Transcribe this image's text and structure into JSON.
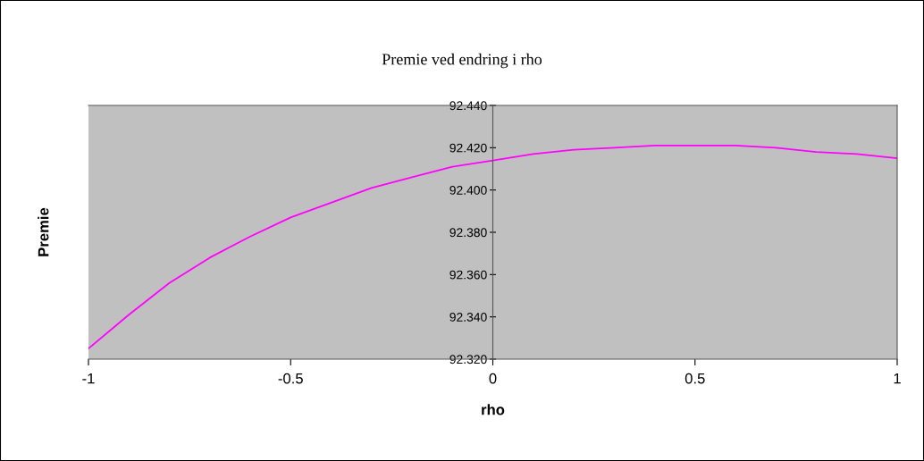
{
  "chart_data": {
    "type": "line",
    "title": "Premie ved endring i rho",
    "xlabel": "rho",
    "ylabel": "Premie",
    "x": [
      -1,
      -0.9,
      -0.8,
      -0.7,
      -0.6,
      -0.5,
      -0.4,
      -0.3,
      -0.2,
      -0.1,
      0,
      0.1,
      0.2,
      0.3,
      0.4,
      0.5,
      0.6,
      0.7,
      0.8,
      0.9,
      1
    ],
    "series": [
      {
        "color": "#ff00ff",
        "values": [
          92.325,
          92.341,
          92.356,
          92.368,
          92.378,
          92.387,
          92.394,
          92.401,
          92.406,
          92.411,
          92.414,
          92.417,
          92.419,
          92.42,
          92.421,
          92.421,
          92.421,
          92.42,
          92.418,
          92.417,
          92.415
        ]
      }
    ],
    "xlim": [
      -1,
      1
    ],
    "xticks": [
      -1,
      -0.5,
      0,
      0.5,
      1
    ],
    "ylim": [
      92.32,
      92.44
    ],
    "yticks": [
      {
        "value": 92.32,
        "label": "92.320"
      },
      {
        "value": 92.34,
        "label": "92.340"
      },
      {
        "value": 92.36,
        "label": "92.360"
      },
      {
        "value": 92.38,
        "label": "92.380"
      },
      {
        "value": 92.4,
        "label": "92.400"
      },
      {
        "value": 92.42,
        "label": "92.420"
      },
      {
        "value": 92.44,
        "label": "92.440"
      }
    ],
    "grid": false,
    "legend": false,
    "marker": "none",
    "line_style": "solid"
  }
}
